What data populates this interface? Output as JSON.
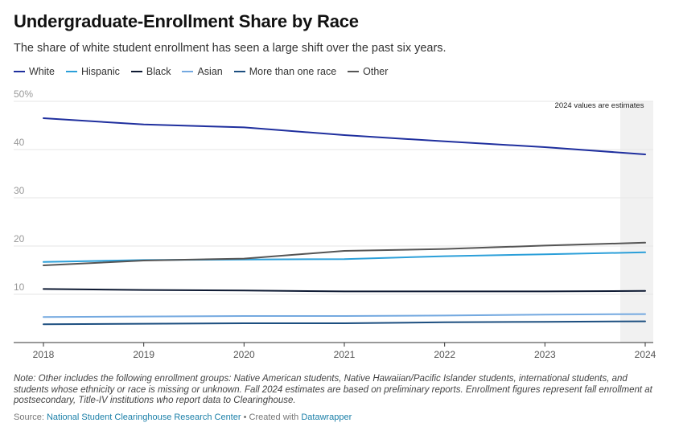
{
  "title": "Undergraduate-Enrollment Share by Race",
  "subtitle": "The share of white student enrollment has seen a large shift over the past six years.",
  "legend": [
    {
      "name": "White",
      "color": "#1f2f9e"
    },
    {
      "name": "Hispanic",
      "color": "#2b9fd9"
    },
    {
      "name": "Black",
      "color": "#0e1a33"
    },
    {
      "name": "Asian",
      "color": "#74a9e0"
    },
    {
      "name": "More than one race",
      "color": "#1d4f80"
    },
    {
      "name": "Other",
      "color": "#555555"
    }
  ],
  "annotation": "2024 values are estimates",
  "note": "Note: Other includes the following enrollment groups: Native American students, Native Hawaiian/Pacific Islander students, international students, and students whose ethnicity or race is missing or unknown. Fall 2024 estimates are based on preliminary reports. Enrollment figures represent fall enrollment at postsecondary, Title-IV institutions who report data to Clearinghouse.",
  "source": {
    "label": "Source:",
    "org": "National Student Clearinghouse Research Center",
    "separator": "•",
    "created": "Created with",
    "tool": "Datawrapper"
  },
  "chart_data": {
    "type": "line",
    "x": [
      "2018",
      "2019",
      "2020",
      "2021",
      "2022",
      "2023",
      "2024"
    ],
    "y_ticks": [
      "50%",
      "40",
      "30",
      "20",
      "10"
    ],
    "y_tick_values": [
      50,
      40,
      30,
      20,
      10
    ],
    "ylim": [
      0,
      50
    ],
    "grid": true,
    "legend_position": "top-left",
    "highlight_range": [
      "2024"
    ],
    "series": [
      {
        "name": "White",
        "color": "#1f2f9e",
        "values": [
          46.5,
          45.2,
          44.6,
          43.0,
          41.7,
          40.5,
          39.0
        ]
      },
      {
        "name": "Hispanic",
        "color": "#2b9fd9",
        "values": [
          16.7,
          17.1,
          17.2,
          17.3,
          17.9,
          18.3,
          18.7
        ]
      },
      {
        "name": "Black",
        "color": "#0e1a33",
        "values": [
          11.1,
          10.9,
          10.8,
          10.6,
          10.6,
          10.6,
          10.7
        ]
      },
      {
        "name": "Asian",
        "color": "#74a9e0",
        "values": [
          5.3,
          5.4,
          5.5,
          5.5,
          5.6,
          5.8,
          5.9
        ]
      },
      {
        "name": "More than one race",
        "color": "#1d4f80",
        "values": [
          3.8,
          3.9,
          4.0,
          4.0,
          4.2,
          4.3,
          4.4
        ]
      },
      {
        "name": "Other",
        "color": "#555555",
        "values": [
          16.0,
          17.0,
          17.4,
          19.0,
          19.4,
          20.1,
          20.7
        ]
      }
    ]
  }
}
